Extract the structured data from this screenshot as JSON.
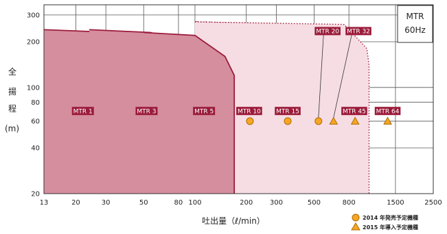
{
  "chart_data": {
    "type": "area",
    "title_box": [
      "MTR",
      "60Hz"
    ],
    "xlabel": "吐出量（ℓ/min）",
    "ylabel_chars": [
      "全",
      "揚",
      "程",
      "(m)"
    ],
    "x_scale": "log",
    "y_scale": "log",
    "xlim": [
      13,
      2500
    ],
    "ylim": [
      20,
      350
    ],
    "x_ticks": [
      13,
      20,
      30,
      50,
      80,
      100,
      200,
      300,
      500,
      800,
      1500,
      2500
    ],
    "y_ticks": [
      20,
      40,
      60,
      80,
      100,
      200,
      300
    ],
    "grid": true,
    "series": [
      {
        "name": "MTR 1",
        "style": "solid",
        "fill": "#d58e9e",
        "curve": [
          [
            13,
            240
          ],
          [
            35,
            230
          ],
          [
            47,
            190
          ],
          [
            50,
            150
          ],
          [
            50,
            20
          ]
        ],
        "label_at": [
          22,
          70
        ]
      },
      {
        "name": "MTR 3",
        "style": "solid",
        "fill": "#d58e9e",
        "curve": [
          [
            24,
            240
          ],
          [
            55,
            230
          ],
          [
            80,
            190
          ],
          [
            90,
            140
          ],
          [
            90,
            20
          ]
        ],
        "label_at": [
          52,
          70
        ]
      },
      {
        "name": "MTR 5",
        "style": "solid",
        "fill": "#d58e9e",
        "curve": [
          [
            50,
            230
          ],
          [
            100,
            220
          ],
          [
            150,
            160
          ],
          [
            170,
            120
          ],
          [
            170,
            20
          ]
        ],
        "label_at": [
          113,
          70
        ]
      },
      {
        "name": "MTR 10",
        "style": "dashed",
        "fill": "#f6dde3",
        "curve": [
          [
            100,
            270
          ],
          [
            180,
            260
          ],
          [
            240,
            190
          ],
          [
            260,
            150
          ],
          [
            260,
            20
          ]
        ],
        "label_at": [
          208,
          70
        ]
      },
      {
        "name": "MTR 15",
        "style": "dashed",
        "fill": "#f6dde3",
        "curve": [
          [
            100,
            270
          ],
          [
            260,
            260
          ],
          [
            380,
            190
          ],
          [
            420,
            150
          ],
          [
            420,
            20
          ]
        ],
        "label_at": [
          350,
          70
        ]
      },
      {
        "name": "MTR 20",
        "style": "dashed",
        "fill": "#f6dde3",
        "curve": [
          [
            100,
            270
          ],
          [
            340,
            260
          ],
          [
            470,
            180
          ],
          [
            480,
            140
          ],
          [
            480,
            20
          ]
        ],
        "label_at": [
          600,
          235
        ]
      },
      {
        "name": "MTR 32",
        "style": "dashed",
        "fill": "#f6dde3",
        "curve": [
          [
            100,
            270
          ],
          [
            440,
            260
          ],
          [
            580,
            190
          ],
          [
            600,
            150
          ],
          [
            600,
            20
          ]
        ],
        "label_at": [
          910,
          235
        ]
      },
      {
        "name": "MTR 45",
        "style": "dotted",
        "fill": "#f6dde3",
        "curve": [
          [
            100,
            270
          ],
          [
            580,
            260
          ],
          [
            720,
            180
          ],
          [
            750,
            140
          ],
          [
            750,
            20
          ]
        ],
        "label_at": [
          860,
          70
        ]
      },
      {
        "name": "MTR 64",
        "style": "dotted",
        "fill": "#f6dde3",
        "curve": [
          [
            100,
            270
          ],
          [
            750,
            260
          ],
          [
            1020,
            180
          ],
          [
            1050,
            140
          ],
          [
            1050,
            20
          ]
        ],
        "label_at": [
          1350,
          70
        ]
      }
    ],
    "markers_2014": [
      [
        210,
        60
      ],
      [
        350,
        60
      ],
      [
        530,
        60
      ]
    ],
    "markers_2015": [
      [
        650,
        60
      ],
      [
        870,
        60
      ],
      [
        1350,
        60
      ]
    ],
    "legend": {
      "circle_label": "2014 年発売予定機種",
      "triangle_label": "2015 年導入予定機種"
    }
  },
  "colors": {
    "dark": "#9b1b3a",
    "fill_dark": "#d58e9e",
    "fill_light": "#f6dde3",
    "label_bg": "#9b1b3a",
    "marker": "#f5a623",
    "marker_stroke": "#b06a00"
  }
}
